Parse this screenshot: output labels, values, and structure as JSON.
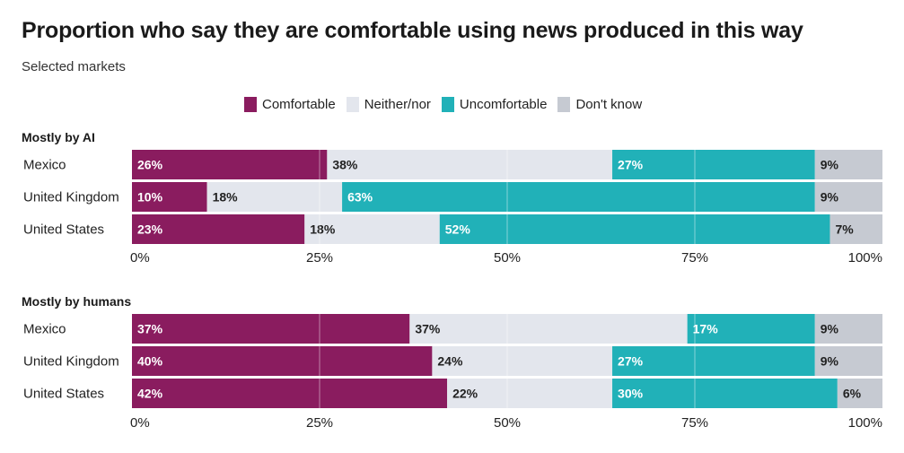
{
  "chart_data": {
    "type": "bar",
    "orientation": "horizontal",
    "stacked": true,
    "title": "Proportion who say they are comfortable using news produced in this way",
    "subtitle": "Selected markets",
    "legend_placement": "top-center",
    "series": [
      {
        "name": "Comfortable",
        "color": "#8a1c5f",
        "label_color": "#ffffff"
      },
      {
        "name": "Neither/nor",
        "color": "#e3e6ed",
        "label_color": "#222222"
      },
      {
        "name": "Uncomfortable",
        "color": "#21b1b8",
        "label_color": "#ffffff"
      },
      {
        "name": "Don't know",
        "color": "#c6cad2",
        "label_color": "#222222"
      }
    ],
    "xlim": [
      0,
      100
    ],
    "ticks": [
      {
        "value": 0,
        "label": "0%"
      },
      {
        "value": 25,
        "label": "25%"
      },
      {
        "value": 50,
        "label": "50%"
      },
      {
        "value": 75,
        "label": "75%"
      },
      {
        "value": 100,
        "label": "100%"
      }
    ],
    "panels": [
      {
        "title": "Mostly by AI",
        "categories": [
          "Mexico",
          "United Kingdom",
          "United States"
        ],
        "values": [
          [
            26,
            38,
            27,
            9
          ],
          [
            10,
            18,
            63,
            9
          ],
          [
            23,
            18,
            52,
            7
          ]
        ]
      },
      {
        "title": "Mostly by humans",
        "categories": [
          "Mexico",
          "United Kingdom",
          "United States"
        ],
        "values": [
          [
            37,
            37,
            17,
            9
          ],
          [
            40,
            24,
            27,
            9
          ],
          [
            42,
            22,
            30,
            6
          ]
        ]
      }
    ]
  }
}
